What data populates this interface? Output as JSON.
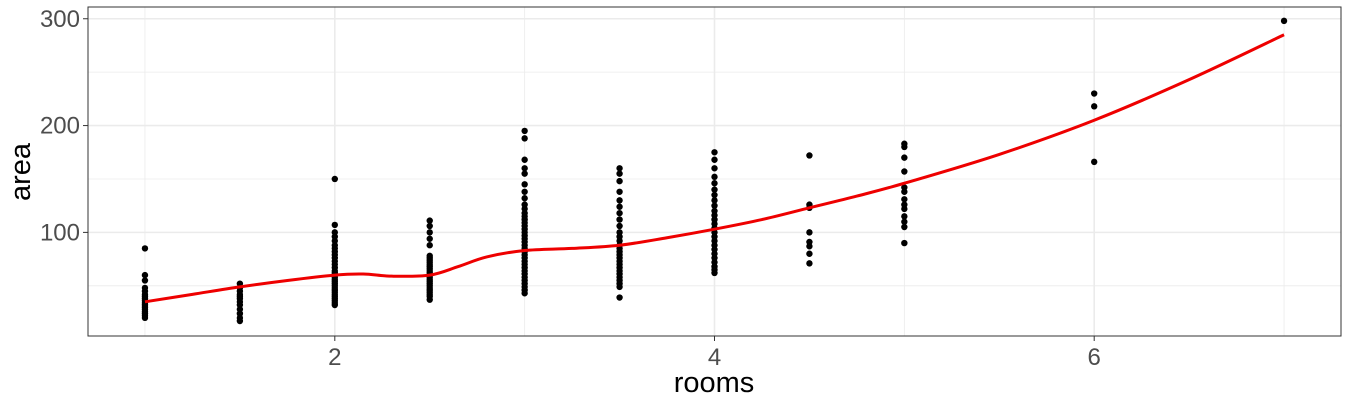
{
  "chart_data": {
    "type": "scatter",
    "title": "",
    "xlabel": "rooms",
    "ylabel": "area",
    "xlim": [
      0.7,
      7.3
    ],
    "ylim": [
      3,
      311
    ],
    "x_ticks": [
      2,
      4,
      6
    ],
    "x_minor_ticks": [
      1,
      3,
      5,
      7
    ],
    "y_ticks": [
      100,
      200,
      300
    ],
    "y_minor_ticks": [
      50,
      150,
      250
    ],
    "grid": true,
    "legend": "none",
    "colors": {
      "points": "#000000",
      "smooth": "#ee0000",
      "panel_border": "#333333",
      "grid": "#ebebeb"
    },
    "points": [
      [
        1,
        85
      ],
      [
        1,
        60
      ],
      [
        1,
        55
      ],
      [
        1,
        48
      ],
      [
        1,
        45
      ],
      [
        1,
        42
      ],
      [
        1,
        40
      ],
      [
        1,
        38
      ],
      [
        1,
        36
      ],
      [
        1,
        34
      ],
      [
        1,
        32
      ],
      [
        1,
        30
      ],
      [
        1,
        28
      ],
      [
        1,
        26
      ],
      [
        1,
        24
      ],
      [
        1,
        22
      ],
      [
        1,
        20
      ],
      [
        1.5,
        52
      ],
      [
        1.5,
        48
      ],
      [
        1.5,
        45
      ],
      [
        1.5,
        42
      ],
      [
        1.5,
        40
      ],
      [
        1.5,
        38
      ],
      [
        1.5,
        35
      ],
      [
        1.5,
        32
      ],
      [
        1.5,
        28
      ],
      [
        1.5,
        24
      ],
      [
        1.5,
        20
      ],
      [
        1.5,
        17
      ],
      [
        2,
        150
      ],
      [
        2,
        107
      ],
      [
        2,
        100
      ],
      [
        2,
        96
      ],
      [
        2,
        92
      ],
      [
        2,
        88
      ],
      [
        2,
        85
      ],
      [
        2,
        82
      ],
      [
        2,
        79
      ],
      [
        2,
        76
      ],
      [
        2,
        73
      ],
      [
        2,
        70
      ],
      [
        2,
        67
      ],
      [
        2,
        64
      ],
      [
        2,
        62
      ],
      [
        2,
        60
      ],
      [
        2,
        58
      ],
      [
        2,
        56
      ],
      [
        2,
        54
      ],
      [
        2,
        52
      ],
      [
        2,
        50
      ],
      [
        2,
        48
      ],
      [
        2,
        46
      ],
      [
        2,
        44
      ],
      [
        2,
        42
      ],
      [
        2,
        40
      ],
      [
        2,
        38
      ],
      [
        2,
        36
      ],
      [
        2,
        34
      ],
      [
        2,
        32
      ],
      [
        2.5,
        111
      ],
      [
        2.5,
        106
      ],
      [
        2.5,
        100
      ],
      [
        2.5,
        94
      ],
      [
        2.5,
        88
      ],
      [
        2.5,
        78
      ],
      [
        2.5,
        76
      ],
      [
        2.5,
        74
      ],
      [
        2.5,
        72
      ],
      [
        2.5,
        70
      ],
      [
        2.5,
        68
      ],
      [
        2.5,
        66
      ],
      [
        2.5,
        64
      ],
      [
        2.5,
        62
      ],
      [
        2.5,
        60
      ],
      [
        2.5,
        58
      ],
      [
        2.5,
        56
      ],
      [
        2.5,
        54
      ],
      [
        2.5,
        52
      ],
      [
        2.5,
        50
      ],
      [
        2.5,
        48
      ],
      [
        2.5,
        46
      ],
      [
        2.5,
        44
      ],
      [
        2.5,
        42
      ],
      [
        2.5,
        40
      ],
      [
        2.5,
        37
      ],
      [
        3,
        195
      ],
      [
        3,
        188
      ],
      [
        3,
        168
      ],
      [
        3,
        160
      ],
      [
        3,
        155
      ],
      [
        3,
        145
      ],
      [
        3,
        138
      ],
      [
        3,
        132
      ],
      [
        3,
        126
      ],
      [
        3,
        122
      ],
      [
        3,
        118
      ],
      [
        3,
        115
      ],
      [
        3,
        112
      ],
      [
        3,
        109
      ],
      [
        3,
        106
      ],
      [
        3,
        103
      ],
      [
        3,
        100
      ],
      [
        3,
        97
      ],
      [
        3,
        94
      ],
      [
        3,
        91
      ],
      [
        3,
        88
      ],
      [
        3,
        85
      ],
      [
        3,
        82
      ],
      [
        3,
        79
      ],
      [
        3,
        76
      ],
      [
        3,
        73
      ],
      [
        3,
        70
      ],
      [
        3,
        67
      ],
      [
        3,
        64
      ],
      [
        3,
        61
      ],
      [
        3,
        58
      ],
      [
        3,
        55
      ],
      [
        3,
        52
      ],
      [
        3,
        49
      ],
      [
        3,
        46
      ],
      [
        3,
        43
      ],
      [
        3.5,
        160
      ],
      [
        3.5,
        155
      ],
      [
        3.5,
        148
      ],
      [
        3.5,
        138
      ],
      [
        3.5,
        130
      ],
      [
        3.5,
        124
      ],
      [
        3.5,
        118
      ],
      [
        3.5,
        112
      ],
      [
        3.5,
        106
      ],
      [
        3.5,
        100
      ],
      [
        3.5,
        96
      ],
      [
        3.5,
        92
      ],
      [
        3.5,
        88
      ],
      [
        3.5,
        85
      ],
      [
        3.5,
        82
      ],
      [
        3.5,
        79
      ],
      [
        3.5,
        76
      ],
      [
        3.5,
        73
      ],
      [
        3.5,
        70
      ],
      [
        3.5,
        67
      ],
      [
        3.5,
        64
      ],
      [
        3.5,
        61
      ],
      [
        3.5,
        58
      ],
      [
        3.5,
        55
      ],
      [
        3.5,
        52
      ],
      [
        3.5,
        49
      ],
      [
        3.5,
        39
      ],
      [
        4,
        175
      ],
      [
        4,
        168
      ],
      [
        4,
        160
      ],
      [
        4,
        152
      ],
      [
        4,
        146
      ],
      [
        4,
        140
      ],
      [
        4,
        135
      ],
      [
        4,
        130
      ],
      [
        4,
        125
      ],
      [
        4,
        120
      ],
      [
        4,
        116
      ],
      [
        4,
        112
      ],
      [
        4,
        108
      ],
      [
        4,
        104
      ],
      [
        4,
        100
      ],
      [
        4,
        96
      ],
      [
        4,
        92
      ],
      [
        4,
        88
      ],
      [
        4,
        84
      ],
      [
        4,
        80
      ],
      [
        4,
        76
      ],
      [
        4,
        72
      ],
      [
        4,
        68
      ],
      [
        4,
        65
      ],
      [
        4,
        62
      ],
      [
        4.5,
        172
      ],
      [
        4.5,
        126
      ],
      [
        4.5,
        123
      ],
      [
        4.5,
        100
      ],
      [
        4.5,
        91
      ],
      [
        4.5,
        87
      ],
      [
        4.5,
        80
      ],
      [
        4.5,
        71
      ],
      [
        5,
        183
      ],
      [
        5,
        180
      ],
      [
        5,
        170
      ],
      [
        5,
        157
      ],
      [
        5,
        142
      ],
      [
        5,
        138
      ],
      [
        5,
        131
      ],
      [
        5,
        126
      ],
      [
        5,
        122
      ],
      [
        5,
        115
      ],
      [
        5,
        110
      ],
      [
        5,
        105
      ],
      [
        5,
        90
      ],
      [
        6,
        230
      ],
      [
        6,
        218
      ],
      [
        6,
        166
      ],
      [
        7,
        298
      ]
    ],
    "smooth_line": {
      "x": [
        1,
        1.25,
        1.5,
        1.75,
        2,
        2.15,
        2.3,
        2.5,
        2.65,
        2.8,
        3,
        3.25,
        3.5,
        3.75,
        4,
        4.25,
        4.5,
        4.75,
        5,
        5.5,
        6,
        6.5,
        7
      ],
      "y": [
        35,
        42,
        49,
        55,
        60,
        61,
        59,
        60,
        68,
        77,
        83,
        85,
        88,
        95,
        103,
        112,
        123,
        134,
        146,
        173,
        205,
        243,
        285
      ]
    }
  }
}
